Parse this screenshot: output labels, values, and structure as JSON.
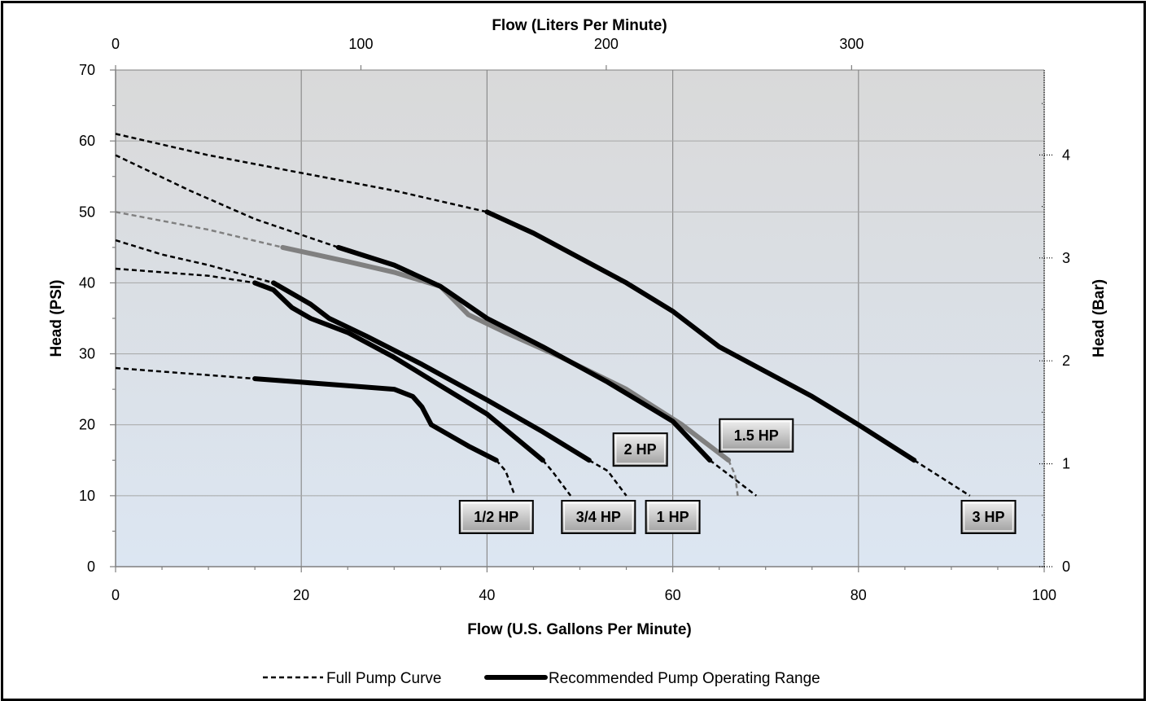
{
  "chart_data": {
    "type": "line",
    "xlabel": "Flow (U.S. Gallons Per Minute)",
    "x2label": "Flow (Liters Per Minute)",
    "ylabel": "Head (PSI)",
    "y2label": "Head (Bar)",
    "xlim": [
      0,
      100
    ],
    "ylim": [
      0,
      70
    ],
    "x2lim": [
      0,
      378.5
    ],
    "y2lim": [
      0,
      4.826
    ],
    "x_ticks": [
      0,
      20,
      40,
      60,
      80,
      100
    ],
    "y_ticks": [
      0,
      10,
      20,
      30,
      40,
      50,
      60,
      70
    ],
    "x2_ticks": [
      0,
      100,
      200,
      300
    ],
    "y2_ticks": [
      0,
      1,
      2,
      3,
      4
    ],
    "grid": true,
    "legend_position": "bottom",
    "legend": [
      {
        "label": "Full Pump Curve",
        "style": "dashed"
      },
      {
        "label": "Recommended Pump Operating Range",
        "style": "solid"
      }
    ],
    "colors": {
      "curve": "#000000",
      "curve_1_5hp": "#808080",
      "plot_top": "#d9d9d9",
      "plot_bottom": "#dce6f2"
    },
    "series": [
      {
        "name": "1/2 HP",
        "full_curve": [
          [
            0,
            28
          ],
          [
            5,
            27.5
          ],
          [
            10,
            27
          ],
          [
            15,
            26.5
          ]
        ],
        "recommended": [
          [
            15,
            26.5
          ],
          [
            20,
            26
          ],
          [
            25,
            25.5
          ],
          [
            30,
            25
          ],
          [
            32,
            24
          ],
          [
            33,
            22.5
          ],
          [
            34,
            20
          ],
          [
            36,
            18.5
          ],
          [
            38,
            17
          ],
          [
            41,
            15
          ]
        ],
        "runout": [
          [
            41,
            15
          ],
          [
            42,
            13.5
          ],
          [
            43,
            10
          ]
        ],
        "label_anchor": [
          41,
          7
        ]
      },
      {
        "name": "3/4 HP",
        "full_curve": [
          [
            0,
            42
          ],
          [
            5,
            41.5
          ],
          [
            10,
            41
          ],
          [
            15,
            40
          ]
        ],
        "recommended": [
          [
            15,
            40
          ],
          [
            17,
            39
          ],
          [
            19,
            36.5
          ],
          [
            21,
            35
          ],
          [
            25,
            33
          ],
          [
            30,
            29.5
          ],
          [
            35,
            25.5
          ],
          [
            40,
            21.5
          ],
          [
            46,
            15
          ]
        ],
        "runout": [
          [
            46,
            15
          ],
          [
            47,
            13.5
          ],
          [
            49,
            10
          ]
        ],
        "label_anchor": [
          52,
          7
        ]
      },
      {
        "name": "1 HP",
        "full_curve": [
          [
            0,
            46
          ],
          [
            5,
            44
          ],
          [
            10,
            42.5
          ],
          [
            17,
            40
          ]
        ],
        "recommended": [
          [
            17,
            40
          ],
          [
            19,
            38.5
          ],
          [
            21,
            37
          ],
          [
            23,
            35
          ],
          [
            27,
            32.5
          ],
          [
            33,
            28.5
          ],
          [
            40,
            23.5
          ],
          [
            46,
            19
          ],
          [
            51,
            15
          ]
        ],
        "runout": [
          [
            51,
            15
          ],
          [
            53,
            13.5
          ],
          [
            55,
            10
          ]
        ],
        "label_anchor": [
          60,
          7
        ]
      },
      {
        "name": "1.5 HP",
        "color": "#808080",
        "full_curve": [
          [
            0,
            50
          ],
          [
            10,
            47.5
          ],
          [
            18,
            45
          ]
        ],
        "recommended": [
          [
            18,
            45
          ],
          [
            25,
            43
          ],
          [
            30,
            41.5
          ],
          [
            35,
            39.5
          ],
          [
            38,
            35.5
          ],
          [
            42,
            33
          ],
          [
            48,
            29.5
          ],
          [
            55,
            25
          ],
          [
            61,
            20
          ],
          [
            66,
            15
          ]
        ],
        "runout": [
          [
            66,
            15
          ],
          [
            66.7,
            13
          ],
          [
            67,
            10
          ]
        ],
        "label_anchor": [
          69,
          18.5
        ]
      },
      {
        "name": "2 HP",
        "full_curve": [
          [
            0,
            58
          ],
          [
            8,
            53
          ],
          [
            15,
            49
          ],
          [
            24,
            45
          ]
        ],
        "recommended": [
          [
            24,
            45
          ],
          [
            30,
            42.5
          ],
          [
            35,
            39.5
          ],
          [
            40,
            35
          ],
          [
            46,
            31
          ],
          [
            53,
            26
          ],
          [
            60,
            20.5
          ],
          [
            64,
            15
          ]
        ],
        "runout": [
          [
            64,
            15
          ],
          [
            66,
            13
          ],
          [
            69,
            10
          ]
        ],
        "label_anchor": [
          56.5,
          16.5
        ]
      },
      {
        "name": "3 HP",
        "full_curve": [
          [
            0,
            61
          ],
          [
            10,
            58
          ],
          [
            20,
            55.5
          ],
          [
            30,
            53
          ],
          [
            40,
            50
          ]
        ],
        "recommended": [
          [
            40,
            50
          ],
          [
            45,
            47
          ],
          [
            50,
            43.5
          ],
          [
            55,
            40
          ],
          [
            60,
            36
          ],
          [
            65,
            31
          ],
          [
            70,
            27.5
          ],
          [
            75,
            24
          ],
          [
            80,
            20
          ],
          [
            86,
            15
          ]
        ],
        "runout": [
          [
            86,
            15
          ],
          [
            89,
            12.5
          ],
          [
            92,
            10
          ]
        ],
        "label_anchor": [
          94,
          7
        ]
      }
    ]
  }
}
